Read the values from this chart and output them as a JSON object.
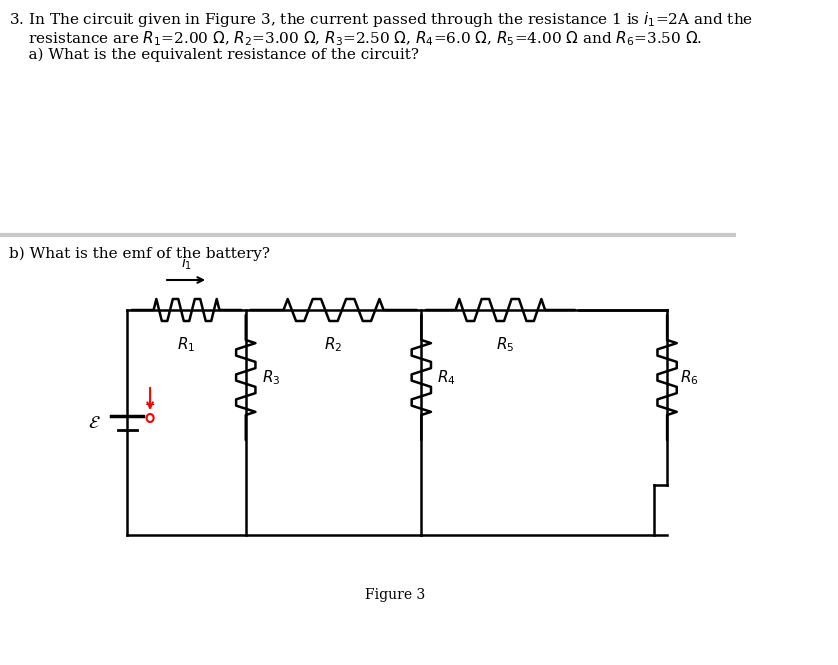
{
  "bg_color": "#ffffff",
  "text_color": "#000000",
  "circuit_color": "#000000",
  "divider_color": "#c8c8c8",
  "font_size_main": 11,
  "font_size_figure": 10,
  "figure_label": "Figure 3",
  "part_b_text": "b) What is the emf of the battery? "
}
